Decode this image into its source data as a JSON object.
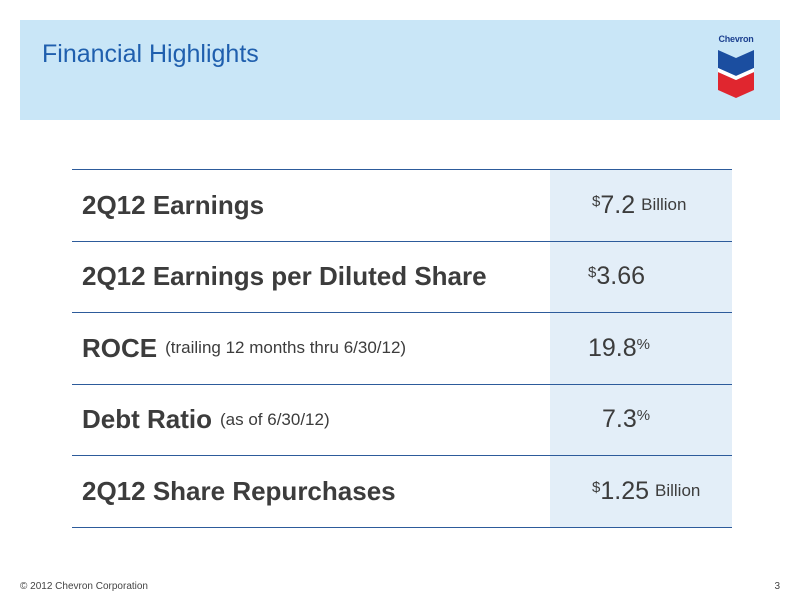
{
  "header": {
    "title": "Financial Highlights",
    "logo_text": "Chevron",
    "logo_icon": "chevron-logo-icon",
    "background_color": "#c9e6f7",
    "title_color": "#1f5fae"
  },
  "table": {
    "rows": [
      {
        "label": "2Q12 Earnings",
        "sub_label": "",
        "prefix": "$",
        "value": "7.2",
        "suffix": "",
        "unit": "Billion"
      },
      {
        "label": "2Q12 Earnings per Diluted Share",
        "sub_label": "",
        "prefix": "$",
        "value": "3.66",
        "suffix": "",
        "unit": ""
      },
      {
        "label": "ROCE",
        "sub_label": "(trailing 12 months thru 6/30/12)",
        "prefix": "",
        "value": "19.8",
        "suffix": "%",
        "unit": ""
      },
      {
        "label": "Debt Ratio",
        "sub_label": "(as of 6/30/12)",
        "prefix": "",
        "value": "7.3",
        "suffix": "%",
        "unit": ""
      },
      {
        "label": "2Q12 Share Repurchases",
        "sub_label": "",
        "prefix": "$",
        "value": "1.25",
        "suffix": "",
        "unit": "Billion"
      }
    ],
    "border_color": "#2d5b9b",
    "value_cell_color": "#e3eef8"
  },
  "footer": {
    "copyright": "© 2012 Chevron Corporation",
    "page_number": "3"
  }
}
